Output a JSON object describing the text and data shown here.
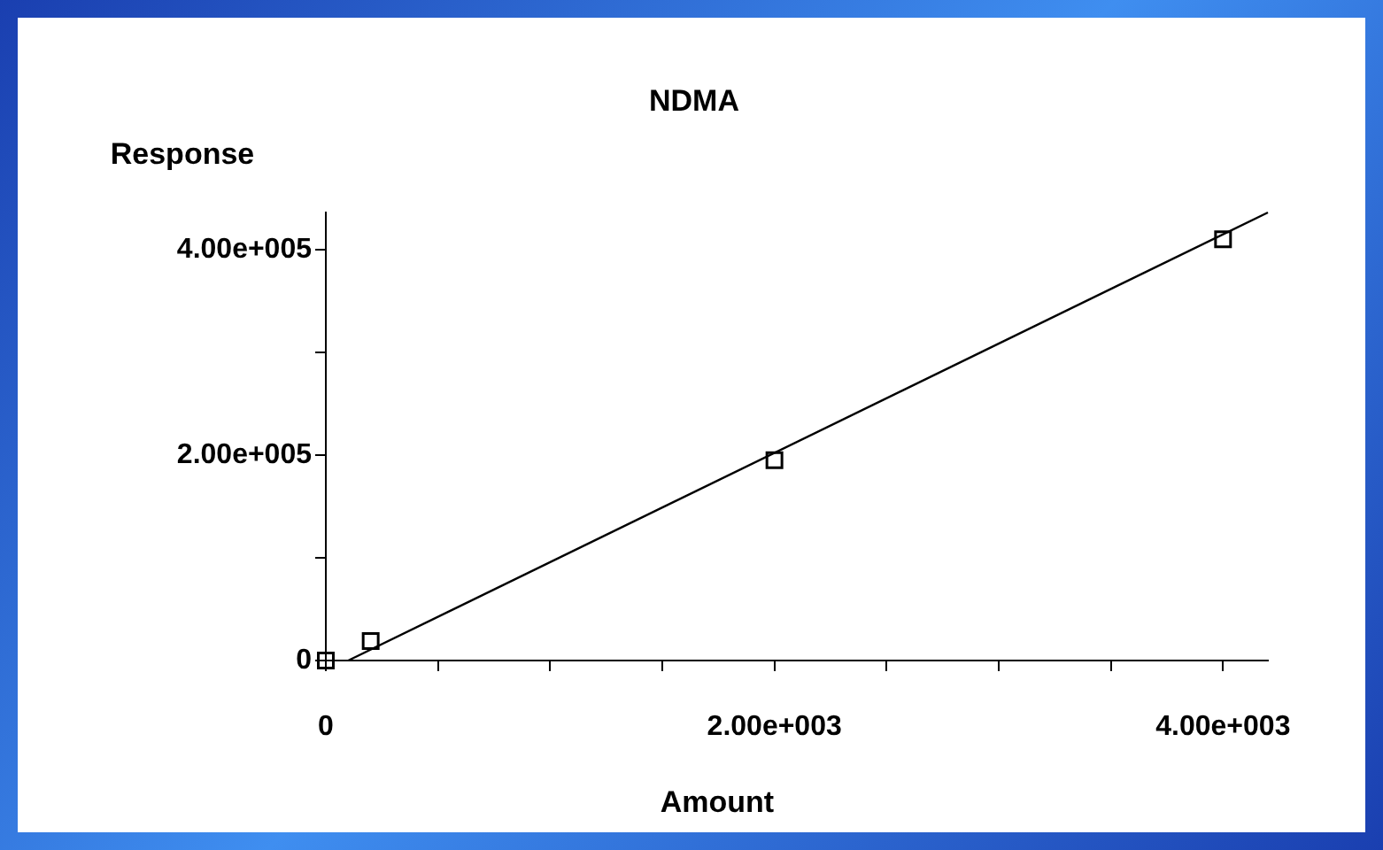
{
  "chart_data": {
    "type": "scatter",
    "title": "NDMA",
    "xlabel": "Amount",
    "ylabel": "Response",
    "xlim": [
      0,
      4200
    ],
    "ylim": [
      0,
      436000
    ],
    "xticks": [
      0,
      {
        "value": 500,
        "label": null
      },
      {
        "value": 1000,
        "label": null
      },
      {
        "value": 1500,
        "label": null
      },
      {
        "value": 2000,
        "label": "2.00e+003"
      },
      {
        "value": 2500,
        "label": null
      },
      {
        "value": 3000,
        "label": null
      },
      {
        "value": 3500,
        "label": null
      },
      {
        "value": 4000,
        "label": "4.00e+003"
      }
    ],
    "yticks": [
      0,
      {
        "value": 100000,
        "label": null
      },
      {
        "value": 200000,
        "label": "2.00e+005"
      },
      {
        "value": 300000,
        "label": null
      },
      {
        "value": 400000,
        "label": "4.00e+005"
      }
    ],
    "series": [
      {
        "color": "#000000",
        "marker": "square",
        "x": [
          0,
          200,
          2000,
          4000
        ],
        "values": [
          0,
          19000,
          195000,
          410000
        ]
      },
      {
        "type": "line",
        "color": "#000000",
        "marker": "none",
        "line_style": "solid",
        "x": [
          100,
          4200
        ],
        "values": [
          0,
          436000
        ]
      }
    ]
  }
}
